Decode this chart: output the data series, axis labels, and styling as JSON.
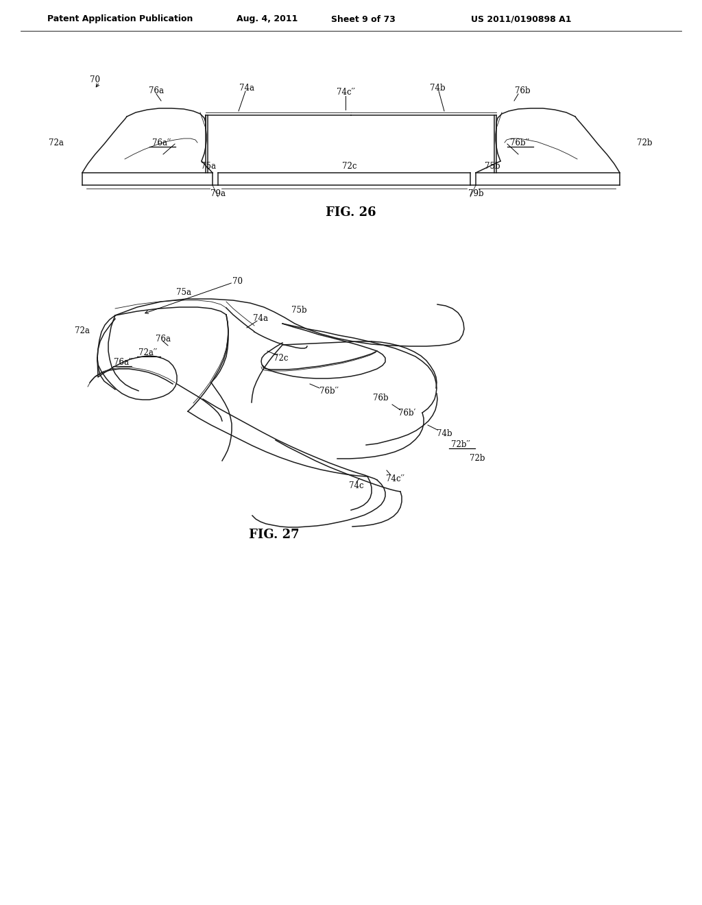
{
  "bg_color": "#ffffff",
  "line_color": "#1a1a1a",
  "fig_width": 10.24,
  "fig_height": 13.2,
  "lw_main": 1.1,
  "lw_thin": 0.6,
  "lw_thick": 1.6,
  "header_left": "Patent Application Publication",
  "header_mid1": "Aug. 4, 2011",
  "header_mid2": "Sheet 9 of 73",
  "header_right": "US 2011/0190898 A1",
  "fig26_label": "FIG. 26",
  "fig27_label": "FIG. 27",
  "fontsize_label": 8.5,
  "fontsize_fig": 13
}
